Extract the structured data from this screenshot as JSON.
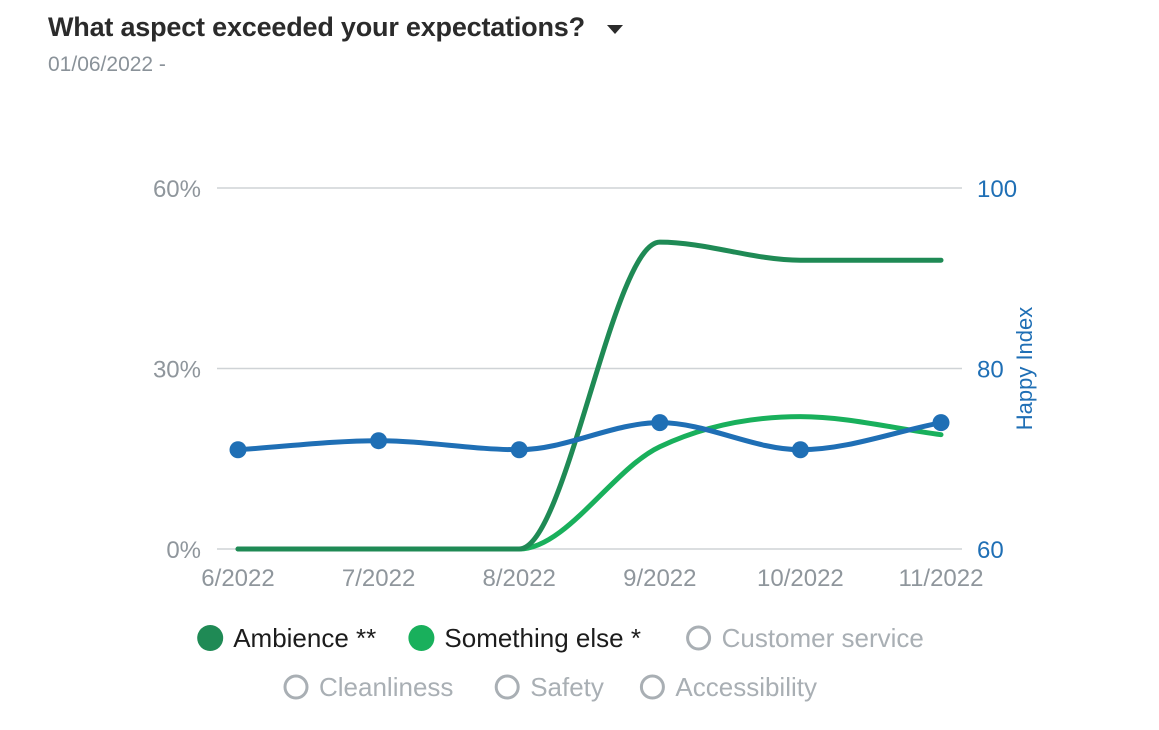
{
  "header": {
    "title": "What aspect exceeded your expectations?",
    "dropdown_icon": "caret-down-icon",
    "date_range": "01/06/2022 -"
  },
  "colors": {
    "ambience": "#1f8a55",
    "something_else": "#19b05c",
    "happy_index": "#1f6fb5",
    "grid": "#cfd3d6",
    "inactive": "#a9afb4"
  },
  "chart_data": {
    "type": "line",
    "categories": [
      "6/2022",
      "7/2022",
      "8/2022",
      "9/2022",
      "10/2022",
      "11/2022"
    ],
    "y_left": {
      "ticks": [
        "0%",
        "30%",
        "60%"
      ],
      "range": [
        0,
        60
      ]
    },
    "y_right": {
      "label": "Happy Index",
      "ticks": [
        "60",
        "80",
        "100"
      ],
      "range": [
        60,
        100
      ]
    },
    "grid": true,
    "series": [
      {
        "name": "Ambience **",
        "axis": "left",
        "markers": false,
        "values": [
          0,
          0,
          0,
          51,
          48,
          48
        ],
        "active": true
      },
      {
        "name": "Something else *",
        "axis": "left",
        "markers": false,
        "values": [
          0,
          0,
          0,
          17,
          22,
          19
        ],
        "active": true
      },
      {
        "axis": "right",
        "markers": true,
        "values": [
          71,
          72,
          71,
          74,
          71,
          74
        ],
        "active": true
      }
    ],
    "legend": {
      "placement": "bottom",
      "items": [
        {
          "label": "Ambience **",
          "active": true,
          "color": "#1f8a55"
        },
        {
          "label": "Something else *",
          "active": true,
          "color": "#19b05c"
        },
        {
          "label": "Customer service",
          "active": false
        },
        {
          "label": "Cleanliness",
          "active": false
        },
        {
          "label": "Safety",
          "active": false
        },
        {
          "label": "Accessibility",
          "active": false
        }
      ]
    }
  }
}
